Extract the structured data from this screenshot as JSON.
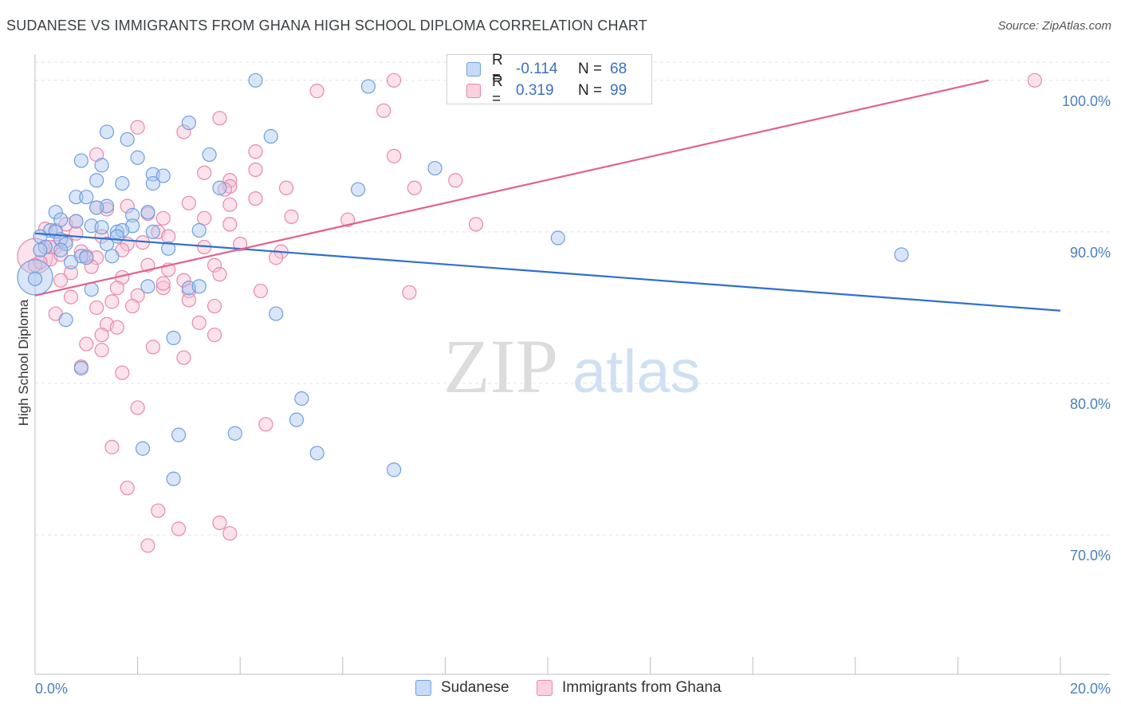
{
  "title": "SUDANESE VS IMMIGRANTS FROM GHANA HIGH SCHOOL DIPLOMA CORRELATION CHART",
  "source": "Source: ZipAtlas.com",
  "watermark": {
    "part1": "ZIP",
    "part2": "atlas"
  },
  "legend": {
    "rows": [
      {
        "r_label": "R =",
        "r_value": "-0.114",
        "n_label": "N =",
        "n_value": "68",
        "color": "#a9c8f0",
        "border": "#6f9fe0"
      },
      {
        "r_label": "R =",
        "r_value": "0.319",
        "n_label": "N =",
        "n_value": "99",
        "color": "#f7bfd2",
        "border": "#e889ab"
      }
    ]
  },
  "bottom_legend": [
    {
      "label": "Sudanese",
      "color": "#c6dbf7",
      "border": "#6f9fe0"
    },
    {
      "label": "Immigrants from Ghana",
      "color": "#fbd0df",
      "border": "#e889ab"
    }
  ],
  "chart_data": {
    "type": "scatter",
    "title": "SUDANESE VS IMMIGRANTS FROM GHANA HIGH SCHOOL DIPLOMA CORRELATION CHART",
    "xlabel": "",
    "ylabel": "High School Diploma",
    "xlim": [
      0,
      20
    ],
    "ylim": [
      60.8,
      101.2
    ],
    "x_tick_labels": [
      {
        "value": 0,
        "label": "0.0%"
      },
      {
        "value": 20,
        "label": "20.0%"
      }
    ],
    "y_tick_labels": [
      {
        "value": 70,
        "label": "70.0%"
      },
      {
        "value": 80,
        "label": "80.0%"
      },
      {
        "value": 90,
        "label": "90.0%"
      },
      {
        "value": 100,
        "label": "100.0%"
      }
    ],
    "grid": true,
    "legend_position": "top-center",
    "series": [
      {
        "name": "Sudanese",
        "color": "#6f9fe0",
        "fill": "#a9c8f0",
        "trend": {
          "x": [
            0,
            20
          ],
          "y": [
            89.9,
            84.8
          ]
        },
        "points": [
          [
            4.3,
            100.0
          ],
          [
            6.5,
            99.6
          ],
          [
            1.4,
            96.6
          ],
          [
            1.8,
            96.1
          ],
          [
            4.6,
            96.3
          ],
          [
            3.0,
            97.2
          ],
          [
            3.4,
            95.1
          ],
          [
            0.9,
            94.7
          ],
          [
            1.3,
            94.4
          ],
          [
            2.0,
            94.9
          ],
          [
            2.3,
            93.8
          ],
          [
            2.5,
            93.7
          ],
          [
            1.2,
            93.4
          ],
          [
            1.7,
            93.2
          ],
          [
            2.3,
            93.2
          ],
          [
            3.6,
            92.9
          ],
          [
            7.8,
            94.2
          ],
          [
            6.3,
            92.8
          ],
          [
            0.8,
            92.3
          ],
          [
            1.0,
            92.3
          ],
          [
            1.4,
            91.7
          ],
          [
            1.2,
            91.6
          ],
          [
            0.4,
            91.3
          ],
          [
            2.2,
            91.3
          ],
          [
            1.9,
            91.1
          ],
          [
            0.5,
            90.8
          ],
          [
            0.8,
            90.7
          ],
          [
            1.1,
            90.4
          ],
          [
            1.9,
            90.4
          ],
          [
            0.3,
            90.1
          ],
          [
            0.4,
            90.0
          ],
          [
            1.6,
            90.0
          ],
          [
            1.7,
            90.1
          ],
          [
            2.3,
            90.0
          ],
          [
            3.2,
            90.1
          ],
          [
            0.1,
            89.7
          ],
          [
            0.5,
            89.5
          ],
          [
            0.6,
            89.2
          ],
          [
            0.2,
            89.0
          ],
          [
            0.1,
            88.8
          ],
          [
            0.5,
            88.8
          ],
          [
            0.9,
            88.4
          ],
          [
            1.5,
            88.4
          ],
          [
            1.4,
            89.2
          ],
          [
            0.7,
            88.0
          ],
          [
            10.2,
            89.6
          ],
          [
            16.9,
            88.5
          ],
          [
            0.0,
            86.9
          ],
          [
            1.1,
            86.2
          ],
          [
            2.2,
            86.4
          ],
          [
            3.0,
            86.3
          ],
          [
            3.2,
            86.4
          ],
          [
            4.7,
            84.6
          ],
          [
            0.6,
            84.2
          ],
          [
            2.7,
            83.0
          ],
          [
            0.9,
            81.0
          ],
          [
            5.2,
            79.0
          ],
          [
            5.1,
            77.6
          ],
          [
            2.8,
            76.6
          ],
          [
            3.9,
            76.7
          ],
          [
            2.1,
            75.7
          ],
          [
            5.5,
            75.4
          ],
          [
            2.7,
            73.7
          ],
          [
            7.0,
            74.3
          ],
          [
            1.0,
            88.3
          ],
          [
            1.6,
            89.7
          ],
          [
            2.6,
            88.9
          ],
          [
            1.3,
            90.3
          ]
        ],
        "big_points": [
          [
            0.0,
            87.0
          ]
        ]
      },
      {
        "name": "Immigrants from Ghana",
        "color": "#e889ab",
        "fill": "#f7bfd2",
        "trend": {
          "x": [
            0,
            18.6
          ],
          "y": [
            85.8,
            100.0
          ]
        },
        "points": [
          [
            7.0,
            100.0
          ],
          [
            19.5,
            100.0
          ],
          [
            5.5,
            99.3
          ],
          [
            6.8,
            98.0
          ],
          [
            3.6,
            97.5
          ],
          [
            2.0,
            96.9
          ],
          [
            2.9,
            96.6
          ],
          [
            1.2,
            95.1
          ],
          [
            4.3,
            95.3
          ],
          [
            7.0,
            95.0
          ],
          [
            4.3,
            94.1
          ],
          [
            3.3,
            93.9
          ],
          [
            3.8,
            93.4
          ],
          [
            8.2,
            93.4
          ],
          [
            3.8,
            93.0
          ],
          [
            7.4,
            92.9
          ],
          [
            4.9,
            92.9
          ],
          [
            3.7,
            92.8
          ],
          [
            1.8,
            91.7
          ],
          [
            3.0,
            91.9
          ],
          [
            4.3,
            92.2
          ],
          [
            3.8,
            91.8
          ],
          [
            1.2,
            91.6
          ],
          [
            2.2,
            91.2
          ],
          [
            2.5,
            90.9
          ],
          [
            3.3,
            90.9
          ],
          [
            5.0,
            91.0
          ],
          [
            6.1,
            90.8
          ],
          [
            8.6,
            90.5
          ],
          [
            3.8,
            90.5
          ],
          [
            0.6,
            90.5
          ],
          [
            0.8,
            90.7
          ],
          [
            0.2,
            90.2
          ],
          [
            0.4,
            90.1
          ],
          [
            2.4,
            90.0
          ],
          [
            2.6,
            89.7
          ],
          [
            1.3,
            89.7
          ],
          [
            0.6,
            89.4
          ],
          [
            1.8,
            89.2
          ],
          [
            0.4,
            89.0
          ],
          [
            0.9,
            88.7
          ],
          [
            1.0,
            88.4
          ],
          [
            1.2,
            88.3
          ],
          [
            0.3,
            88.2
          ],
          [
            0.5,
            88.5
          ],
          [
            4.8,
            88.7
          ],
          [
            4.7,
            88.3
          ],
          [
            0.1,
            88.0
          ],
          [
            0.0,
            87.8
          ],
          [
            1.1,
            87.7
          ],
          [
            2.2,
            87.8
          ],
          [
            2.6,
            87.5
          ],
          [
            3.5,
            87.8
          ],
          [
            0.7,
            87.3
          ],
          [
            1.7,
            87.0
          ],
          [
            2.9,
            86.8
          ],
          [
            3.6,
            87.2
          ],
          [
            1.6,
            86.3
          ],
          [
            2.5,
            86.3
          ],
          [
            3.0,
            86.1
          ],
          [
            4.4,
            86.1
          ],
          [
            7.3,
            86.0
          ],
          [
            2.0,
            85.8
          ],
          [
            3.0,
            85.5
          ],
          [
            0.7,
            85.7
          ],
          [
            1.5,
            85.4
          ],
          [
            1.9,
            85.1
          ],
          [
            3.5,
            85.1
          ],
          [
            0.4,
            84.6
          ],
          [
            1.4,
            83.9
          ],
          [
            1.6,
            83.7
          ],
          [
            3.5,
            83.2
          ],
          [
            1.3,
            83.2
          ],
          [
            1.0,
            82.6
          ],
          [
            2.3,
            82.4
          ],
          [
            1.3,
            82.2
          ],
          [
            2.9,
            81.7
          ],
          [
            0.9,
            81.1
          ],
          [
            1.7,
            80.7
          ],
          [
            2.0,
            78.4
          ],
          [
            4.5,
            77.3
          ],
          [
            1.5,
            75.8
          ],
          [
            1.8,
            73.1
          ],
          [
            2.4,
            71.6
          ],
          [
            3.6,
            70.8
          ],
          [
            2.8,
            70.4
          ],
          [
            3.8,
            70.1
          ],
          [
            2.2,
            69.3
          ],
          [
            3.3,
            89.0
          ],
          [
            4.0,
            89.2
          ],
          [
            2.1,
            89.3
          ],
          [
            0.3,
            89.0
          ],
          [
            1.7,
            88.8
          ],
          [
            0.8,
            89.9
          ],
          [
            1.4,
            91.5
          ],
          [
            2.5,
            86.6
          ],
          [
            0.5,
            86.8
          ],
          [
            1.2,
            85.0
          ],
          [
            3.2,
            84.0
          ]
        ],
        "big_points": [
          [
            0.0,
            88.4
          ]
        ]
      }
    ]
  }
}
